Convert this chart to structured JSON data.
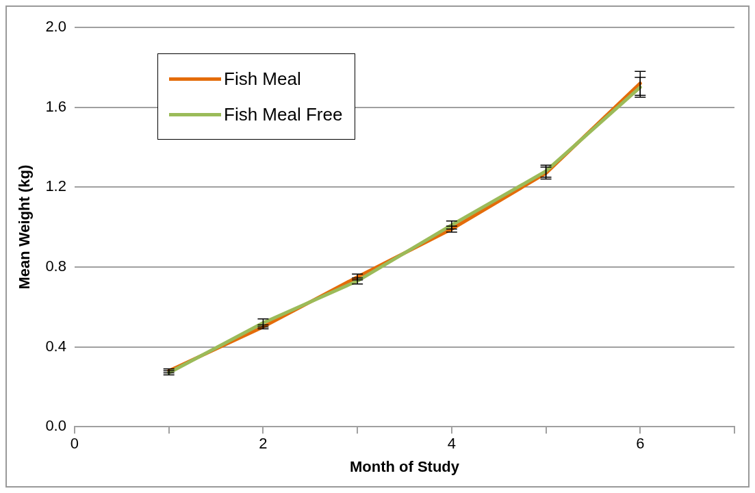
{
  "chart_data": {
    "type": "line",
    "xlabel": "Month of Study",
    "ylabel": "Mean Weight (kg)",
    "xlim": [
      0,
      7
    ],
    "xticks": [
      0,
      {
        "value": 1,
        "label": null
      },
      2,
      {
        "value": 3,
        "label": null
      },
      4,
      {
        "value": 5,
        "label": null
      },
      6,
      {
        "value": 7,
        "label": null
      }
    ],
    "ylim": [
      0,
      2
    ],
    "yticks": [
      {
        "value": 0,
        "label": "0.0"
      },
      {
        "value": 0.4,
        "label": "0.4"
      },
      {
        "value": 0.8,
        "label": "0.8"
      },
      {
        "value": 1.2,
        "label": "1.2"
      },
      {
        "value": 1.6,
        "label": "1.6"
      },
      {
        "value": 2,
        "label": "2.0"
      }
    ],
    "grid": "y",
    "legend": "top left",
    "line_style": "solid",
    "x": [
      1,
      2,
      3,
      4,
      5,
      6
    ],
    "series": [
      {
        "name": "Fish Meal",
        "color": "#e46c0a",
        "values": [
          0.28,
          0.5,
          0.75,
          0.99,
          1.27,
          1.72
        ],
        "errors": [
          0.01,
          0.01,
          0.015,
          0.015,
          0.03,
          0.06
        ]
      },
      {
        "name": "Fish Meal Free",
        "color": "#9bbb59",
        "values": [
          0.27,
          0.52,
          0.73,
          1.01,
          1.28,
          1.7
        ],
        "errors": [
          0.01,
          0.02,
          0.015,
          0.02,
          0.03,
          0.05
        ]
      }
    ]
  }
}
